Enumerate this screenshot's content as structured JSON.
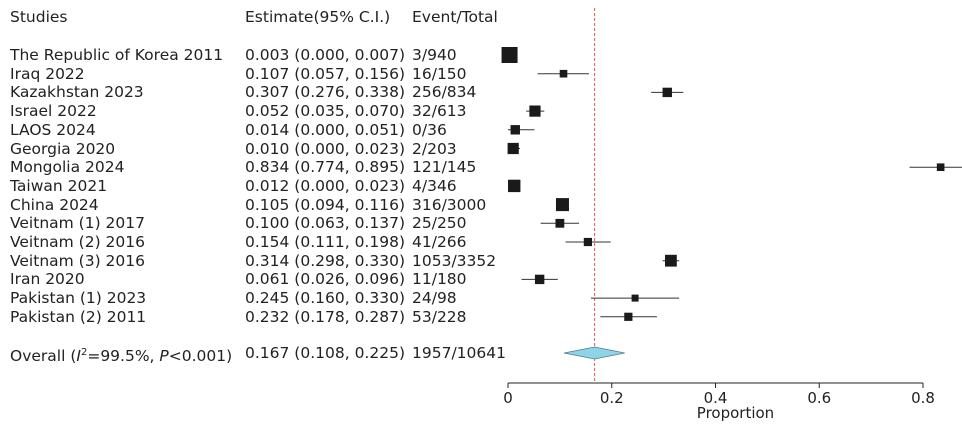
{
  "headers": {
    "studies": "Studies",
    "estimate": "Estimate(95% C.I.)",
    "events": "Event/Total"
  },
  "chart_data": {
    "type": "forest",
    "xlabel": "Proportion",
    "xlim": [
      0,
      0.85
    ],
    "xticks": [
      "0",
      "0.2",
      "0.4",
      "0.6",
      "0.8"
    ],
    "xtick_values": [
      0,
      0.2,
      0.4,
      0.6,
      0.8
    ],
    "reference_line": 0.167,
    "reference_line_color": "#e0574a",
    "diamond_color": "#8fd3e6",
    "studies": [
      {
        "label": "The Republic of Korea 2011",
        "estimate_text": "0.003 (0.000, 0.007)",
        "events_text": "3/940",
        "estimate": 0.003,
        "lower": 0.0,
        "upper": 0.007,
        "weight": 1.0
      },
      {
        "label": "Iraq 2022",
        "estimate_text": "0.107 (0.057, 0.156)",
        "events_text": "16/150",
        "estimate": 0.107,
        "lower": 0.057,
        "upper": 0.156,
        "weight": 0.3
      },
      {
        "label": "Kazakhstan 2023",
        "estimate_text": "0.307 (0.276, 0.338)",
        "events_text": "256/834",
        "estimate": 0.307,
        "lower": 0.276,
        "upper": 0.338,
        "weight": 0.45
      },
      {
        "label": "Israel 2022",
        "estimate_text": "0.052 (0.035, 0.070)",
        "events_text": "32/613",
        "estimate": 0.052,
        "lower": 0.035,
        "upper": 0.07,
        "weight": 0.6
      },
      {
        "label": "LAOS 2024",
        "estimate_text": "0.014 (0.000, 0.051)",
        "events_text": "0/36",
        "estimate": 0.014,
        "lower": 0.0,
        "upper": 0.051,
        "weight": 0.45
      },
      {
        "label": "Georgia 2020",
        "estimate_text": "0.010 (0.000, 0.023)",
        "events_text": "2/203",
        "estimate": 0.01,
        "lower": 0.0,
        "upper": 0.023,
        "weight": 0.6
      },
      {
        "label": "Mongolia 2024",
        "estimate_text": "0.834 (0.774, 0.895)",
        "events_text": "121/145",
        "estimate": 0.834,
        "lower": 0.774,
        "upper": 0.895,
        "weight": 0.3
      },
      {
        "label": "Taiwan 2021",
        "estimate_text": "0.012 (0.000, 0.023)",
        "events_text": "4/346",
        "estimate": 0.012,
        "lower": 0.0,
        "upper": 0.023,
        "weight": 0.7
      },
      {
        "label": "China 2024",
        "estimate_text": "0.105 (0.094, 0.116)",
        "events_text": "316/3000",
        "estimate": 0.105,
        "lower": 0.094,
        "upper": 0.116,
        "weight": 0.75
      },
      {
        "label": "Veitnam (1) 2017",
        "estimate_text": "0.100 (0.063, 0.137)",
        "events_text": "25/250",
        "estimate": 0.1,
        "lower": 0.063,
        "upper": 0.137,
        "weight": 0.4
      },
      {
        "label": "Veitnam (2) 2016",
        "estimate_text": "0.154 (0.111, 0.198)",
        "events_text": "41/266",
        "estimate": 0.154,
        "lower": 0.111,
        "upper": 0.198,
        "weight": 0.35
      },
      {
        "label": "Veitnam (3) 2016",
        "estimate_text": "0.314 (0.298, 0.330)",
        "events_text": "1053/3352",
        "estimate": 0.314,
        "lower": 0.298,
        "upper": 0.33,
        "weight": 0.65
      },
      {
        "label": "Iran 2020",
        "estimate_text": "0.061 (0.026, 0.096)",
        "events_text": "11/180",
        "estimate": 0.061,
        "lower": 0.026,
        "upper": 0.096,
        "weight": 0.45
      },
      {
        "label": "Pakistan (1) 2023",
        "estimate_text": "0.245 (0.160, 0.330)",
        "events_text": "24/98",
        "estimate": 0.245,
        "lower": 0.16,
        "upper": 0.33,
        "weight": 0.25
      },
      {
        "label": "Pakistan (2) 2011",
        "estimate_text": "0.232 (0.178, 0.287)",
        "events_text": "53/228",
        "estimate": 0.232,
        "lower": 0.178,
        "upper": 0.287,
        "weight": 0.35
      }
    ],
    "overall": {
      "label": "Overall (I²=99.5%, P<0.001)",
      "estimate_text": "0.167 (0.108, 0.225)",
      "events_text": "1957/10641",
      "estimate": 0.167,
      "lower": 0.108,
      "upper": 0.225
    }
  }
}
